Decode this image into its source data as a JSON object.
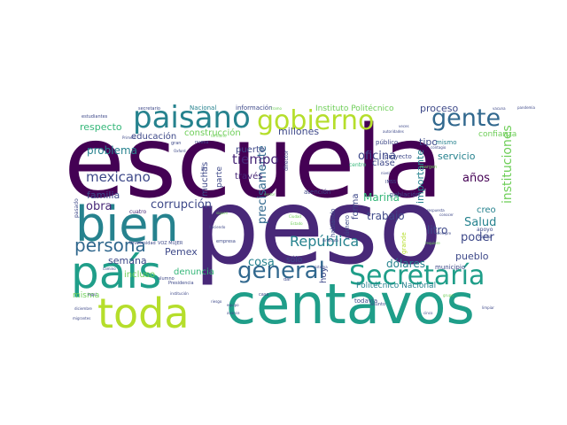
{
  "palette": {
    "dark_purple": "#440154",
    "purple": "#482878",
    "indigo": "#3e4989",
    "blue": "#31688e",
    "teal_blue": "#26828e",
    "teal": "#1f9e89",
    "green": "#35b779",
    "light_green": "#6ece58",
    "lime": "#b5de2b",
    "yellow": "#fde725"
  },
  "words": [
    {
      "text": "escuela",
      "weight": 100,
      "color": "#440154",
      "rotate": 0
    },
    {
      "text": "peso",
      "weight": 95,
      "color": "#482878",
      "rotate": 0
    },
    {
      "text": "centavos",
      "weight": 70,
      "color": "#1f9e89",
      "rotate": 0
    },
    {
      "text": "toda",
      "weight": 60,
      "color": "#b5de2b",
      "rotate": 0
    },
    {
      "text": "país",
      "weight": 58,
      "color": "#1f9e89",
      "rotate": 0
    },
    {
      "text": "bien",
      "weight": 56,
      "color": "#26828e",
      "rotate": 0
    },
    {
      "text": "paisano",
      "weight": 42,
      "color": "#26828e",
      "rotate": 0
    },
    {
      "text": "gobierno",
      "weight": 42,
      "color": "#b5de2b",
      "rotate": 0
    },
    {
      "text": "gente",
      "weight": 34,
      "color": "#31688e",
      "rotate": 0
    },
    {
      "text": "Secretaría",
      "weight": 34,
      "color": "#1f9e89",
      "rotate": 0
    },
    {
      "text": "general",
      "weight": 30,
      "color": "#31688e",
      "rotate": 0
    },
    {
      "text": "persona",
      "weight": 24,
      "color": "#31688e",
      "rotate": 0
    },
    {
      "text": "República",
      "weight": 20,
      "color": "#26828e",
      "rotate": 0
    },
    {
      "text": "precisamente",
      "weight": 18,
      "color": "#31688e",
      "rotate": -90
    },
    {
      "text": "instituciones",
      "weight": 18,
      "color": "#6ece58",
      "rotate": -90
    },
    {
      "text": "mexicano",
      "weight": 17,
      "color": "#3e4989",
      "rotate": 0
    },
    {
      "text": "tiempo",
      "weight": 17,
      "color": "#482878",
      "rotate": 0
    },
    {
      "text": "corrupción",
      "weight": 15,
      "color": "#3e4989",
      "rotate": 0
    },
    {
      "text": "Salud",
      "weight": 15,
      "color": "#26828e",
      "rotate": 0
    },
    {
      "text": "cosa",
      "weight": 14,
      "color": "#26828e",
      "rotate": 0
    },
    {
      "text": "poder",
      "weight": 14,
      "color": "#3e4989",
      "rotate": 0
    },
    {
      "text": "oficina",
      "weight": 13,
      "color": "#3e4989",
      "rotate": 0
    },
    {
      "text": "Marina",
      "weight": 13,
      "color": "#35b779",
      "rotate": 0
    },
    {
      "text": "años",
      "weight": 13,
      "color": "#440154",
      "rotate": 0
    },
    {
      "text": "problema",
      "weight": 12,
      "color": "#26828e",
      "rotate": 0
    },
    {
      "text": "respecto",
      "weight": 12,
      "color": "#35b779",
      "rotate": 0
    },
    {
      "text": "millones",
      "weight": 12,
      "color": "#3e4989",
      "rotate": 0
    },
    {
      "text": "proceso",
      "weight": 12,
      "color": "#3e4989",
      "rotate": 0
    },
    {
      "text": "obra",
      "weight": 12,
      "color": "#482878",
      "rotate": 0
    },
    {
      "text": "litro",
      "weight": 12,
      "color": "#3e4989",
      "rotate": 0
    },
    {
      "text": "pueblo",
      "weight": 11,
      "color": "#3e4989",
      "rotate": 0
    },
    {
      "text": "dólares",
      "weight": 11,
      "color": "#26828e",
      "rotate": 0
    },
    {
      "text": "importante",
      "weight": 11,
      "color": "#26828e",
      "rotate": -90
    },
    {
      "text": "Pemex",
      "weight": 11,
      "color": "#3e4989",
      "rotate": 0
    },
    {
      "text": "semana",
      "weight": 11,
      "color": "#3e4989",
      "rotate": 0
    },
    {
      "text": "trabajo",
      "weight": 11,
      "color": "#3e4989",
      "rotate": 0
    },
    {
      "text": "familia",
      "weight": 11,
      "color": "#3e4989",
      "rotate": 0
    },
    {
      "text": "creo",
      "weight": 11,
      "color": "#26828e",
      "rotate": 0
    },
    {
      "text": "servicio",
      "weight": 11,
      "color": "#26828e",
      "rotate": 0
    },
    {
      "text": "tipo",
      "weight": 11,
      "color": "#3e4989",
      "rotate": 0
    },
    {
      "text": "educación",
      "weight": 10,
      "color": "#3e4989",
      "rotate": 0
    },
    {
      "text": "construcción",
      "weight": 10,
      "color": "#6ece58",
      "rotate": 0
    },
    {
      "text": "muchas",
      "weight": 10,
      "color": "#3e4989",
      "rotate": -90
    },
    {
      "text": "través",
      "weight": 10,
      "color": "#482878",
      "rotate": 0
    },
    {
      "text": "puerto",
      "weight": 10,
      "color": "#3e4989",
      "rotate": 0
    },
    {
      "text": "clase",
      "weight": 10,
      "color": "#3e4989",
      "rotate": 0
    },
    {
      "text": "denuncia",
      "weight": 10,
      "color": "#35b779",
      "rotate": 0
    },
    {
      "text": "incluso",
      "weight": 10,
      "color": "#6ece58",
      "rotate": 0
    },
    {
      "text": "misma",
      "weight": 9,
      "color": "#6ece58",
      "rotate": 0
    },
    {
      "text": "forma",
      "weight": 9,
      "color": "#3e4989",
      "rotate": -90
    },
    {
      "text": "hoy",
      "weight": 9,
      "color": "#3e4989",
      "rotate": -90
    },
    {
      "text": "Instituto Politécnico",
      "weight": 8,
      "color": "#6ece58",
      "rotate": 0
    },
    {
      "text": "Politécnico Nacional",
      "weight": 8,
      "color": "#26828e",
      "rotate": 0
    },
    {
      "text": "confianza",
      "weight": 8,
      "color": "#6ece58",
      "rotate": 0
    },
    {
      "text": "sólo",
      "weight": 8,
      "color": "#3e4989",
      "rotate": 0
    },
    {
      "text": "parte",
      "weight": 8,
      "color": "#3e4989",
      "rotate": -90
    },
    {
      "text": "hablando",
      "weight": 7,
      "color": "#3e4989",
      "rotate": -90
    },
    {
      "text": "número",
      "weight": 7,
      "color": "#3e4989",
      "rotate": -90
    },
    {
      "text": "mismo",
      "weight": 7,
      "color": "#26828e",
      "rotate": 0
    },
    {
      "text": "público",
      "weight": 7,
      "color": "#3e4989",
      "rotate": 0
    },
    {
      "text": "centro",
      "weight": 6,
      "color": "#35b779",
      "rotate": 0
    },
    {
      "text": "proyecto",
      "weight": 7,
      "color": "#3e4989",
      "rotate": 0
    },
    {
      "text": "información",
      "weight": 7,
      "color": "#3e4989",
      "rotate": 0
    },
    {
      "text": "Nacional",
      "weight": 7,
      "color": "#26828e",
      "rotate": 0
    },
    {
      "text": "población",
      "weight": 7,
      "color": "#3e4989",
      "rotate": 0
    },
    {
      "text": "atención",
      "weight": 7,
      "color": "#3e4989",
      "rotate": 0
    },
    {
      "text": "municipio",
      "weight": 7,
      "color": "#3e4989",
      "rotate": 0
    },
    {
      "text": "todavía",
      "weight": 7,
      "color": "#3e4989",
      "rotate": 0
    },
    {
      "text": "apoyo",
      "weight": 6,
      "color": "#3e4989",
      "rotate": 0
    },
    {
      "text": "grande",
      "weight": 6,
      "color": "#b5de2b",
      "rotate": -90
    },
    {
      "text": "cuatro",
      "weight": 6,
      "color": "#482878",
      "rotate": 0
    },
    {
      "text": "pasado",
      "weight": 6,
      "color": "#3e4989",
      "rotate": -90
    },
    {
      "text": "director",
      "weight": 6,
      "color": "#3e4989",
      "rotate": -90
    },
    {
      "text": "VOZ MUJER",
      "weight": 5,
      "color": "#3e4989",
      "rotate": 0
    },
    {
      "text": "Universidad",
      "weight": 5,
      "color": "#3e4989",
      "rotate": 0
    },
    {
      "text": "secretario",
      "weight": 5,
      "color": "#3e4989",
      "rotate": 0
    },
    {
      "text": "estudiantes",
      "weight": 5,
      "color": "#3e4989",
      "rotate": 0
    },
    {
      "text": "Presidencia",
      "weight": 5,
      "color": "#3e4989",
      "rotate": 0
    },
    {
      "text": "empresa",
      "weight": 5,
      "color": "#3e4989",
      "rotate": 0
    },
    {
      "text": "alumno",
      "weight": 5,
      "color": "#3e4989",
      "rotate": 0
    },
    {
      "text": "gran",
      "weight": 5,
      "color": "#3e4989",
      "rotate": 0
    },
    {
      "text": "nueva",
      "weight": 5,
      "color": "#3e4989",
      "rotate": 0
    },
    {
      "text": "Oxford",
      "weight": 4,
      "color": "#3e4989",
      "rotate": 0
    },
    {
      "text": "Primero",
      "weight": 4,
      "color": "#3e4989",
      "rotate": 0
    },
    {
      "text": "Ley",
      "weight": 5,
      "color": "#3e4989",
      "rotate": -90
    },
    {
      "text": "sindicato",
      "weight": 4,
      "color": "#3e4989",
      "rotate": 0
    },
    {
      "text": "Ciudad",
      "weight": 4,
      "color": "#6ece58",
      "rotate": 0
    },
    {
      "text": "Estado",
      "weight": 4,
      "color": "#6ece58",
      "rotate": 0
    },
    {
      "text": "vacuna",
      "weight": 4,
      "color": "#3e4989",
      "rotate": 0
    },
    {
      "text": "pandemia",
      "weight": 4,
      "color": "#3e4989",
      "rotate": 0
    },
    {
      "text": "contagio",
      "weight": 4,
      "color": "#3e4989",
      "rotate": 0
    },
    {
      "text": "autoridades",
      "weight": 4,
      "color": "#3e4989",
      "rotate": 0
    },
    {
      "text": "margen",
      "weight": 5,
      "color": "#6ece58",
      "rotate": 0
    },
    {
      "text": "IMSS",
      "weight": 5,
      "color": "#3e4989",
      "rotate": 0
    },
    {
      "text": "nivel",
      "weight": 4,
      "color": "#3e4989",
      "rotate": 0
    },
    {
      "text": "veces",
      "weight": 4,
      "color": "#3e4989",
      "rotate": 0
    },
    {
      "text": "siempre",
      "weight": 4,
      "color": "#3e4989",
      "rotate": 0
    },
    {
      "text": "conocer",
      "weight": 4,
      "color": "#3e4989",
      "rotate": 0
    },
    {
      "text": "requiere",
      "weight": 4,
      "color": "#6ece58",
      "rotate": 0
    },
    {
      "text": "respuesta",
      "weight": 4,
      "color": "#3e4989",
      "rotate": 0
    },
    {
      "text": "trabajar",
      "weight": 4,
      "color": "#3e4989",
      "rotate": 0
    },
    {
      "text": "limpiar",
      "weight": 4,
      "color": "#3e4989",
      "rotate": 0
    },
    {
      "text": "cinco",
      "weight": 4,
      "color": "#3e4989",
      "rotate": 0
    },
    {
      "text": "grupo",
      "weight": 4,
      "color": "#6ece58",
      "rotate": 0
    },
    {
      "text": "asunto",
      "weight": 5,
      "color": "#3e4989",
      "rotate": 0
    },
    {
      "text": "sistema",
      "weight": 4,
      "color": "#3e4989",
      "rotate": 0
    },
    {
      "text": "casa",
      "weight": 5,
      "color": "#3e4989",
      "rotate": 0
    },
    {
      "text": "dar",
      "weight": 5,
      "color": "#3e4989",
      "rotate": 0
    },
    {
      "text": "riesgo",
      "weight": 4,
      "color": "#3e4989",
      "rotate": 0
    },
    {
      "text": "equipo",
      "weight": 4,
      "color": "#3e4989",
      "rotate": 0
    },
    {
      "text": "avance",
      "weight": 4,
      "color": "#3e4989",
      "rotate": 0
    },
    {
      "text": "legal",
      "weight": 4,
      "color": "#3e4989",
      "rotate": 0
    },
    {
      "text": "diciembre",
      "weight": 4,
      "color": "#3e4989",
      "rotate": 0
    },
    {
      "text": "migrantes",
      "weight": 4,
      "color": "#3e4989",
      "rotate": 0
    },
    {
      "text": "camino",
      "weight": 4,
      "color": "#3e4989",
      "rotate": 0
    },
    {
      "text": "institución",
      "weight": 4,
      "color": "#3e4989",
      "rotate": 0
    },
    {
      "text": "sector",
      "weight": 4,
      "color": "#6ece58",
      "rotate": 0
    },
    {
      "text": "haciendo",
      "weight": 4,
      "color": "#3e4989",
      "rotate": 0
    },
    {
      "text": "siguen",
      "weight": 4,
      "color": "#6ece58",
      "rotate": 0
    },
    {
      "text": "territorio",
      "weight": 4,
      "color": "#6ece58",
      "rotate": 0
    },
    {
      "text": "tramo",
      "weight": 4,
      "color": "#6ece58",
      "rotate": 0
    }
  ]
}
